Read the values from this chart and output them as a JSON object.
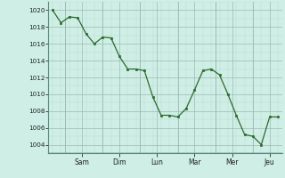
{
  "y_values": [
    1020,
    1018.5,
    1019.2,
    1019.1,
    1017.2,
    1016.0,
    1016.8,
    1016.7,
    1014.5,
    1013.0,
    1013.0,
    1012.8,
    1009.7,
    1007.5,
    1007.5,
    1007.3,
    1008.3,
    1010.5,
    1012.8,
    1013.0,
    1012.3,
    1010.0,
    1007.5,
    1005.2,
    1005.0,
    1004.0,
    1007.3,
    1007.3
  ],
  "day_labels": [
    "Sam",
    "Dim",
    "Lun",
    "Mar",
    "Mer",
    "Jeu"
  ],
  "day_tick_positions": [
    3.5,
    8.0,
    12.5,
    17.0,
    21.5,
    26.0
  ],
  "day_vline_positions": [
    1.5,
    6.0,
    10.5,
    15.0,
    19.5,
    24.0
  ],
  "line_color": "#2d6a2d",
  "marker_color": "#2d6a2d",
  "bg_color": "#ceeee6",
  "minor_grid_color": "#b8d8d0",
  "major_grid_color": "#9abab2",
  "ylim_min": 1003,
  "ylim_max": 1021,
  "yticks": [
    1004,
    1006,
    1008,
    1010,
    1012,
    1014,
    1016,
    1018,
    1020
  ]
}
